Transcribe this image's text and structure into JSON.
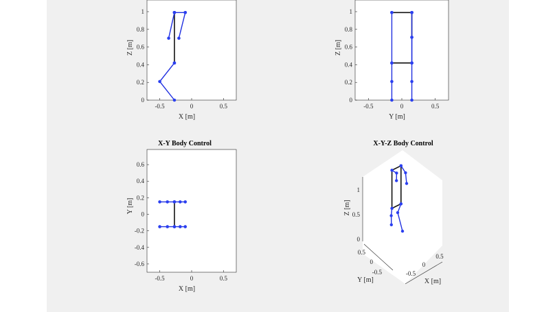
{
  "colors": {
    "link": "#1f2fe0",
    "body": "#111111",
    "joint": "#2a3ff0",
    "canvas": "#f0f0f0",
    "axes_bg": "#ffffff"
  },
  "chart_data": [
    {
      "id": "xz",
      "type": "line",
      "title": "",
      "xlabel": "X [m]",
      "ylabel": "Z [m]",
      "xlim": [
        -0.7,
        0.7
      ],
      "ylim": [
        0,
        1
      ],
      "xticks": [
        "-0.5",
        "0",
        "0.5"
      ],
      "xtick_values": [
        -0.5,
        0,
        0.5
      ],
      "yticks": [
        "0",
        "0.2",
        "0.4",
        "0.6",
        "0.8",
        "1"
      ],
      "ytick_values": [
        0,
        0.2,
        0.4,
        0.6,
        0.8,
        1
      ],
      "grid": false,
      "series": [
        {
          "role": "body",
          "x": [
            -0.27,
            -0.27
          ],
          "y": [
            0.42,
            0.99
          ]
        },
        {
          "role": "leg",
          "x": [
            -0.27,
            -0.36,
            -0.27
          ],
          "y": [
            0.99,
            0.7,
            0.99
          ]
        },
        {
          "role": "leg",
          "x": [
            -0.27,
            -0.1
          ],
          "y": [
            0.99,
            0.99
          ]
        },
        {
          "role": "leg",
          "x": [
            -0.1,
            -0.2
          ],
          "y": [
            0.99,
            0.7
          ]
        },
        {
          "role": "leg",
          "x": [
            -0.27,
            -0.5,
            -0.27
          ],
          "y": [
            0.42,
            0.21,
            0.0
          ]
        }
      ]
    },
    {
      "id": "yz",
      "type": "line",
      "title": "",
      "xlabel": "Y [m]",
      "ylabel": "Z [m]",
      "xlim": [
        -0.7,
        0.7
      ],
      "ylim": [
        0,
        1
      ],
      "xticks": [
        "-0.5",
        "0",
        "0.5"
      ],
      "xtick_values": [
        -0.5,
        0,
        0.5
      ],
      "yticks": [
        "0",
        "0.2",
        "0.4",
        "0.6",
        "0.8",
        "1"
      ],
      "ytick_values": [
        0,
        0.2,
        0.4,
        0.6,
        0.8,
        1
      ],
      "grid": false,
      "series": [
        {
          "role": "body",
          "x": [
            -0.15,
            0.15
          ],
          "y": [
            0.99,
            0.99
          ]
        },
        {
          "role": "body",
          "x": [
            -0.15,
            0.15
          ],
          "y": [
            0.42,
            0.42
          ]
        },
        {
          "role": "body",
          "x": [
            0.15,
            0.15
          ],
          "y": [
            0.71,
            0.99
          ]
        },
        {
          "role": "leg",
          "x": [
            -0.15,
            -0.15,
            -0.15,
            -0.15
          ],
          "y": [
            0.99,
            0.42,
            0.21,
            0.0
          ]
        },
        {
          "role": "leg",
          "x": [
            0.15,
            0.15,
            0.15,
            0.15
          ],
          "y": [
            0.99,
            0.42,
            0.21,
            0.0
          ]
        },
        {
          "role": "leg",
          "x": [
            0.15,
            0.15
          ],
          "y": [
            0.71,
            0.42
          ]
        }
      ]
    },
    {
      "id": "xy",
      "type": "line",
      "title": "X-Y Body Control",
      "xlabel": "X [m]",
      "ylabel": "Y [m]",
      "xlim": [
        -0.7,
        0.7
      ],
      "ylim": [
        -0.7,
        0.7
      ],
      "xticks": [
        "-0.5",
        "0",
        "0.5"
      ],
      "xtick_values": [
        -0.5,
        0,
        0.5
      ],
      "yticks": [
        "-0.6",
        "-0.4",
        "-0.2",
        "0",
        "0.2",
        "0.4",
        "0.6"
      ],
      "ytick_values": [
        -0.6,
        -0.4,
        -0.2,
        0,
        0.2,
        0.4,
        0.6
      ],
      "grid": false,
      "series": [
        {
          "role": "body",
          "x": [
            -0.27,
            -0.27
          ],
          "y": [
            0.15,
            -0.15
          ]
        },
        {
          "role": "leg",
          "x": [
            -0.5,
            -0.38,
            -0.27,
            -0.18,
            -0.1
          ],
          "y": [
            0.15,
            0.15,
            0.15,
            0.15,
            0.15
          ]
        },
        {
          "role": "leg",
          "x": [
            -0.5,
            -0.38,
            -0.27,
            -0.18,
            -0.1
          ],
          "y": [
            -0.15,
            -0.15,
            -0.15,
            -0.15,
            -0.15
          ]
        }
      ]
    },
    {
      "id": "xyz",
      "type": "line",
      "title": "X-Y-Z Body Control",
      "xlabel": "X [m]",
      "ylabel": "Y [m]",
      "zlabel": "Z [m]",
      "xticks": [
        "-0.5",
        "0",
        "0.5"
      ],
      "yticks": [
        "-0.5",
        "0",
        "0.5"
      ],
      "zticks": [
        "0",
        "0.5",
        "1"
      ],
      "grid": false,
      "series": [
        {
          "role": "body",
          "x": [
            -0.27,
            -0.27,
            -0.27,
            -0.27
          ],
          "y": [
            -0.15,
            0.15,
            0.15,
            -0.15
          ],
          "z": [
            0.99,
            0.99,
            0.42,
            0.42
          ]
        },
        {
          "role": "body",
          "x": [
            -0.27,
            -0.27
          ],
          "y": [
            -0.15,
            -0.15
          ],
          "z": [
            0.99,
            0.42
          ]
        },
        {
          "role": "leg",
          "x": [
            -0.27,
            -0.1,
            -0.05
          ],
          "y": [
            0.15,
            0.15,
            0.2
          ],
          "z": [
            0.99,
            0.99,
            0.9
          ]
        },
        {
          "role": "leg",
          "x": [
            -0.27,
            -0.05,
            -0.12
          ],
          "y": [
            -0.15,
            -0.1,
            -0.2
          ],
          "z": [
            0.99,
            0.95,
            0.75
          ]
        },
        {
          "role": "leg",
          "x": [
            -0.27,
            -0.5,
            -0.27
          ],
          "y": [
            -0.15,
            -0.25,
            -0.2
          ],
          "z": [
            0.42,
            0.21,
            0.0
          ]
        },
        {
          "role": "leg",
          "x": [
            -0.27,
            -0.35,
            -0.4
          ],
          "y": [
            0.15,
            0.1,
            0.05
          ],
          "z": [
            0.42,
            0.28,
            0.12
          ]
        }
      ]
    }
  ]
}
